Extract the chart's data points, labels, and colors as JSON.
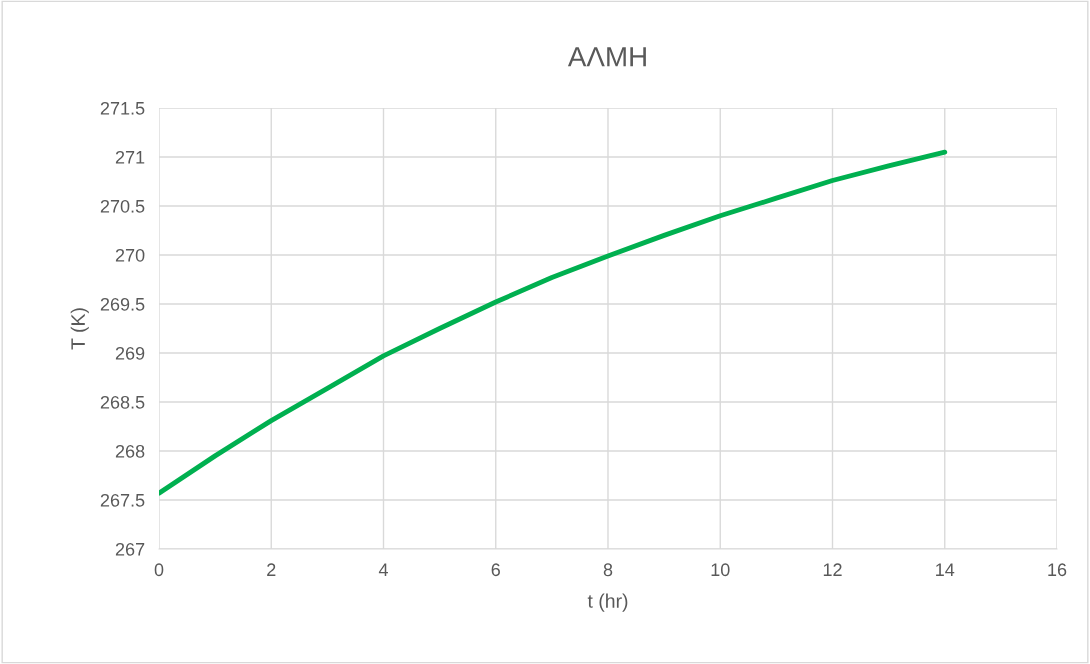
{
  "chart_data": {
    "type": "line",
    "title": "ΑΛΜΗ",
    "xlabel": "t (hr)",
    "ylabel": "T (K)",
    "x": [
      0,
      1,
      2,
      3,
      4,
      5,
      6,
      7,
      8,
      9,
      10,
      11,
      12,
      13,
      14
    ],
    "series": [
      {
        "color": "#00b050",
        "values": [
          267.57,
          267.95,
          268.31,
          268.64,
          268.97,
          269.25,
          269.52,
          269.77,
          269.99,
          270.2,
          270.4,
          270.58,
          270.76,
          270.91,
          271.05
        ]
      }
    ],
    "xlim": [
      0,
      16
    ],
    "xticks": [
      0,
      2,
      4,
      6,
      8,
      10,
      12,
      14,
      16
    ],
    "ylim": [
      267,
      271.5
    ],
    "yticks": [
      {
        "value": 267,
        "label": "267"
      },
      {
        "value": 267.5,
        "label": "267.5"
      },
      {
        "value": 268,
        "label": "268"
      },
      {
        "value": 268.5,
        "label": "268.5"
      },
      {
        "value": 269,
        "label": "269"
      },
      {
        "value": 269.5,
        "label": "269.5"
      },
      {
        "value": 270,
        "label": "270"
      },
      {
        "value": 270.5,
        "label": "270.5"
      },
      {
        "value": 271,
        "label": "271"
      },
      {
        "value": 271.5,
        "label": "271.5"
      }
    ],
    "grid": true,
    "marker": "none",
    "line_style": "solid"
  }
}
